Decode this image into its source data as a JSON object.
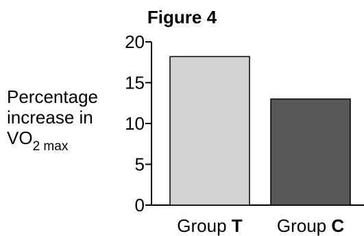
{
  "chart_data": {
    "type": "bar",
    "title": "Figure 4",
    "ylabel": {
      "line1": "Percentage",
      "line2": "increase in",
      "main": "VO",
      "sub": "2 max"
    },
    "xlabel": "",
    "categories": [
      {
        "prefix": "Group ",
        "letter": "T"
      },
      {
        "prefix": "Group ",
        "letter": "C"
      }
    ],
    "values": [
      18.2,
      13.0
    ],
    "bar_colors": [
      "#d3d3d3",
      "#575757"
    ],
    "ylim": [
      0,
      20
    ],
    "yticks": [
      "0",
      "5",
      "10",
      "15",
      "20"
    ],
    "grid": false
  }
}
